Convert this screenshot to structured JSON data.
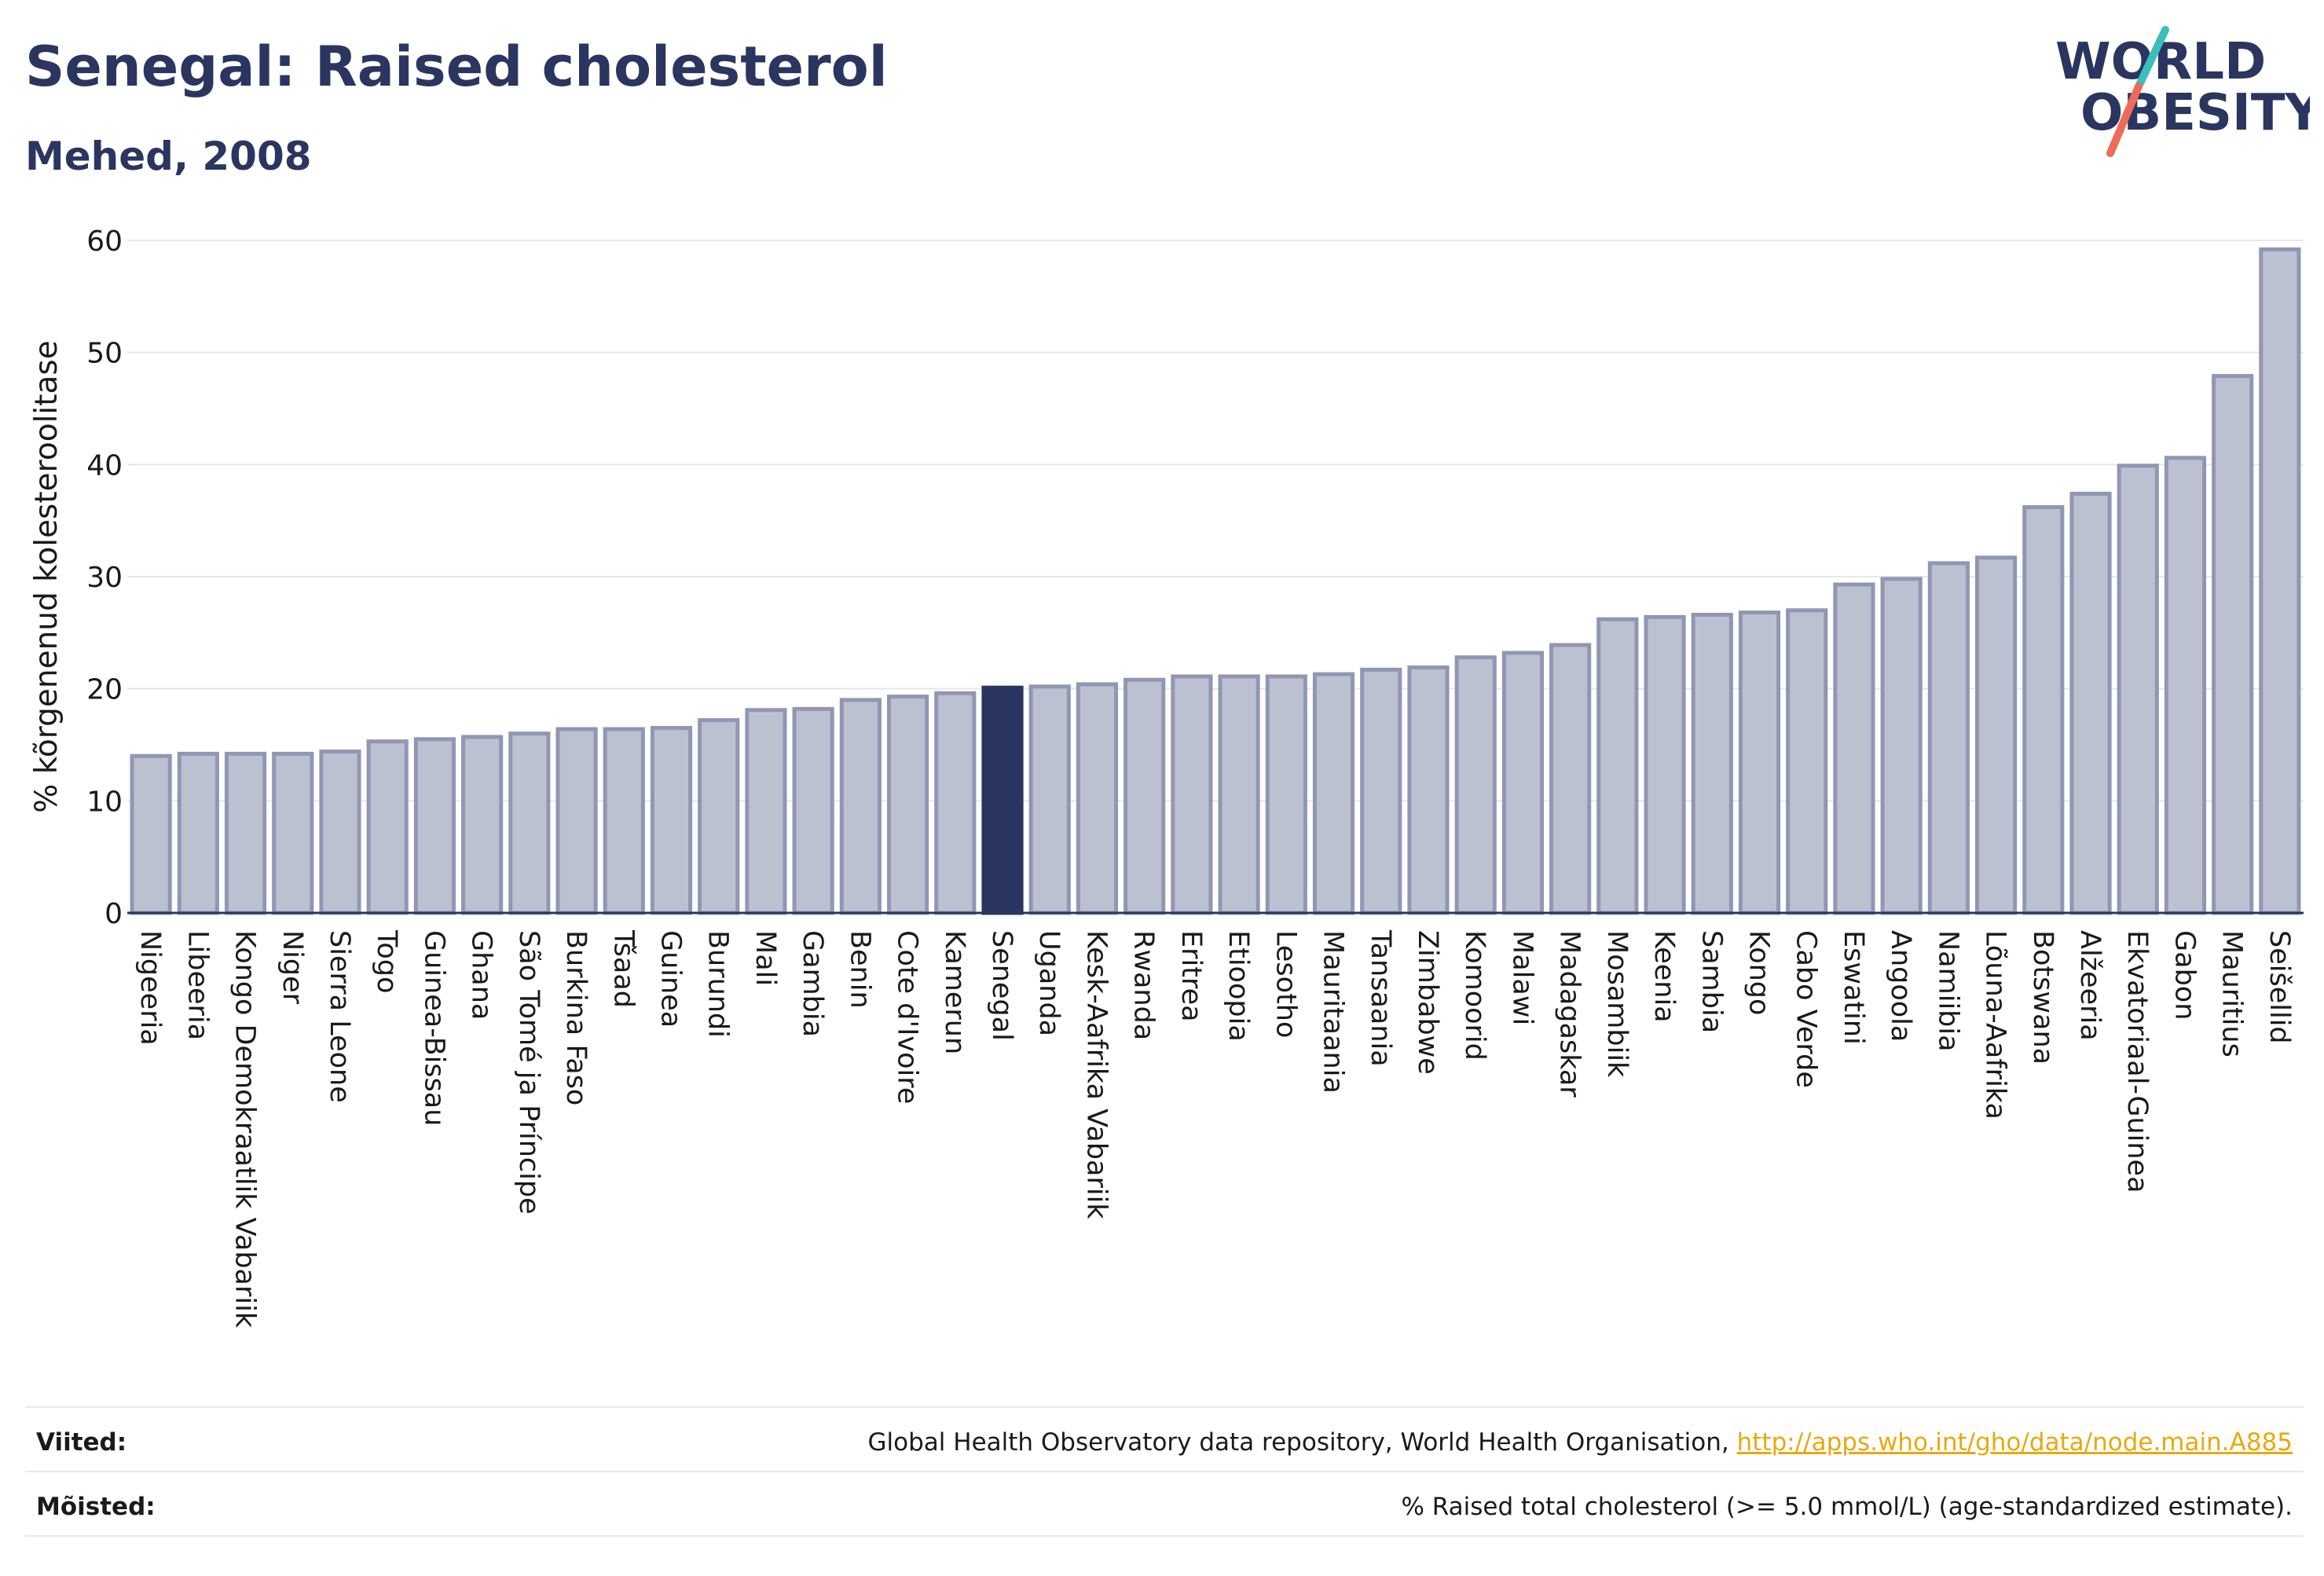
{
  "header": {
    "title": "Senegal: Raised cholesterol",
    "subtitle": "Mehed, 2008"
  },
  "logo": {
    "line1": "WORLD",
    "line2": "OBESITY"
  },
  "colors": {
    "text": "#2a3560",
    "bar_fill": "#bcc1d1",
    "bar_stroke": "#9097b3",
    "highlight_bar": "#2a3560",
    "grid": "#e6e8ee",
    "link": "#e8a90f",
    "logo_teal": "#3bbfbd",
    "logo_coral": "#ee6b5a"
  },
  "chart_data": {
    "type": "bar",
    "ylabel": "% kõrgenenud kolesteroolitase",
    "ylim": [
      0,
      60
    ],
    "yticks": [
      0,
      10,
      20,
      30,
      40,
      50,
      60
    ],
    "grid": true,
    "highlight": "Senegal",
    "categories": [
      "Nigeeria",
      "Libeeria",
      "Kongo Demokraatlik Vabariik",
      "Niger",
      "Sierra Leone",
      "Togo",
      "Guinea-Bissau",
      "Ghana",
      "São Tomé ja Príncipe",
      "Burkina Faso",
      "Tšaad",
      "Guinea",
      "Burundi",
      "Mali",
      "Gambia",
      "Benin",
      "Cote d'Ivoire",
      "Kamerun",
      "Senegal",
      "Uganda",
      "Kesk-Aafrika Vabariik",
      "Rwanda",
      "Eritrea",
      "Etioopia",
      "Lesotho",
      "Mauritaania",
      "Tansaania",
      "Zimbabwe",
      "Komoorid",
      "Malawi",
      "Madagaskar",
      "Mosambiik",
      "Keenia",
      "Sambia",
      "Kongo",
      "Cabo Verde",
      "Eswatini",
      "Angoola",
      "Namiibia",
      "Lõuna-Aafrika",
      "Botswana",
      "Alžeeria",
      "Ekvatoriaal-Guinea",
      "Gabon",
      "Mauritius",
      "Seišellid"
    ],
    "values": [
      14.0,
      14.2,
      14.2,
      14.2,
      14.4,
      15.3,
      15.5,
      15.7,
      16.0,
      16.4,
      16.4,
      16.5,
      17.2,
      18.1,
      18.2,
      19.0,
      19.3,
      19.6,
      20.1,
      20.2,
      20.4,
      20.8,
      21.1,
      21.1,
      21.1,
      21.3,
      21.7,
      21.9,
      22.8,
      23.2,
      23.9,
      26.2,
      26.4,
      26.6,
      26.8,
      27.0,
      29.3,
      29.8,
      31.2,
      31.7,
      36.2,
      37.4,
      39.9,
      40.6,
      47.9,
      59.2
    ]
  },
  "footer": {
    "sources_label": "Viited:",
    "sources_text": "Global Health Observatory data repository, World Health Organisation, ",
    "sources_link": "http://apps.who.int/gho/data/node.main.A885",
    "definitions_label": "Mõisted:",
    "definitions_text": "% Raised total cholesterol (>= 5.0 mmol/L) (age-standardized estimate)."
  }
}
